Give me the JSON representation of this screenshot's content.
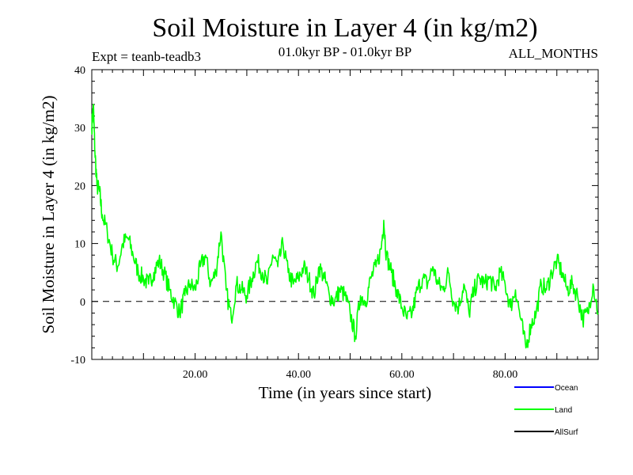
{
  "chart_data": {
    "type": "line",
    "title": "Soil Moisture in Layer 4 (in kg/m2)",
    "subtitle_left": "Expt = teanb-teadb3",
    "subtitle_center": "01.0kyr BP - 01.0kyr BP",
    "subtitle_right": "ALL_MONTHS",
    "xlabel": "Time (in years since start)",
    "ylabel": "Soil Moisture in Layer 4 (in kg/m2)",
    "xlim": [
      0,
      98
    ],
    "ylim": [
      -10,
      40
    ],
    "x_ticks": [
      20,
      40,
      60,
      80
    ],
    "x_tick_labels": [
      "20.00",
      "40.00",
      "60.00",
      "80.00"
    ],
    "y_ticks": [
      -10,
      0,
      10,
      20,
      30,
      40
    ],
    "y_tick_labels": [
      "-10",
      "0",
      "10",
      "20",
      "30",
      "40"
    ],
    "reference_line": 0,
    "legend": [
      {
        "name": "Ocean",
        "color": "#0000ff"
      },
      {
        "name": "Land",
        "color": "#00ff00"
      },
      {
        "name": "AllSurf",
        "color": "#000000"
      }
    ],
    "series": [
      {
        "name": "Land",
        "color": "#00ff00",
        "x": [
          0,
          0.3,
          0.6,
          1,
          1.5,
          2,
          3,
          4,
          5,
          6,
          7,
          8,
          9,
          10,
          11,
          12,
          13,
          14,
          15,
          16,
          17,
          18,
          19,
          20,
          21,
          22,
          23,
          24,
          25,
          26,
          27,
          28,
          29,
          30,
          31,
          32,
          33,
          34,
          35,
          36,
          37,
          38,
          39,
          40,
          41,
          42,
          43,
          44,
          45,
          46,
          47,
          48,
          49,
          50,
          51,
          52,
          53,
          54,
          55,
          56,
          56.5,
          57,
          58,
          59,
          60,
          61,
          62,
          63,
          64,
          65,
          66,
          67,
          68,
          69,
          70,
          71,
          72,
          73,
          74,
          75,
          76,
          77,
          78,
          79,
          80,
          81,
          82,
          83,
          84,
          85,
          86,
          87,
          88,
          89,
          90,
          91,
          92,
          93,
          94,
          95,
          96,
          97,
          98
        ],
        "values": [
          30,
          34,
          26,
          20,
          19,
          15,
          12,
          8,
          6,
          10,
          11,
          8,
          5,
          4,
          3,
          5,
          7,
          5,
          2,
          0,
          -2,
          1,
          3,
          2,
          6,
          8,
          3,
          5,
          12,
          2,
          -3,
          3,
          2,
          1,
          4,
          7,
          5,
          3,
          8,
          6,
          10,
          5,
          3,
          4,
          6,
          4,
          1,
          6,
          4,
          1,
          0,
          2,
          1,
          -2,
          -6,
          1,
          0,
          4,
          6,
          9,
          14,
          8,
          5,
          2,
          -1,
          -3,
          -2,
          2,
          4,
          3,
          6,
          3,
          2,
          5,
          0,
          -1,
          3,
          -2,
          2,
          4,
          3,
          4,
          2,
          5,
          3,
          -1,
          2,
          -3,
          -8,
          -4,
          -2,
          3,
          2,
          5,
          7,
          5,
          2,
          3,
          1,
          -3,
          -2,
          3,
          -2
        ]
      }
    ]
  }
}
